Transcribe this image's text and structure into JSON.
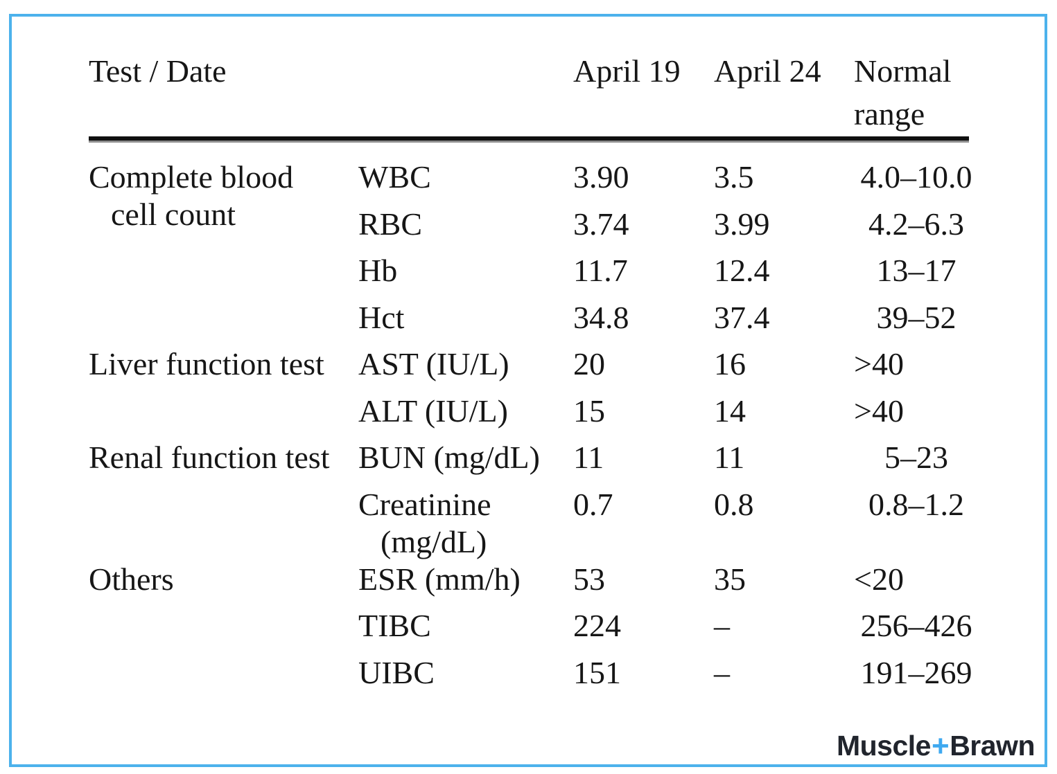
{
  "frame": {
    "border_color": "#4cb2ec"
  },
  "table": {
    "header": {
      "test_date": "Test / Date",
      "april19": "April 19",
      "april24": "April 24",
      "normal_range": "Normal range"
    },
    "rows": [
      {
        "group": [
          "Complete blood",
          "cell count"
        ],
        "test": [
          "WBC"
        ],
        "apr19": "3.90",
        "apr24": "3.5",
        "range": "4.0–10.0"
      },
      {
        "group": [],
        "test": [
          "RBC"
        ],
        "apr19": "3.74",
        "apr24": "3.99",
        "range": "4.2–6.3"
      },
      {
        "group": [],
        "test": [
          "Hb"
        ],
        "apr19": "11.7",
        "apr24": "12.4",
        "range": "13–17"
      },
      {
        "group": [],
        "test": [
          "Hct"
        ],
        "apr19": "34.8",
        "apr24": "37.4",
        "range": "39–52"
      },
      {
        "group": [
          "Liver function test"
        ],
        "test": [
          "AST (IU/L)"
        ],
        "apr19": "20",
        "apr24": "16",
        "range": ">40"
      },
      {
        "group": [],
        "test": [
          "ALT (IU/L)"
        ],
        "apr19": "15",
        "apr24": "14",
        "range": ">40"
      },
      {
        "group": [
          "Renal function test"
        ],
        "test": [
          "BUN (mg/dL)"
        ],
        "apr19": "11",
        "apr24": "11",
        "range": "5–23"
      },
      {
        "group": [],
        "test": [
          "Creatinine",
          "(mg/dL)"
        ],
        "apr19": "0.7",
        "apr24": "0.8",
        "range": "0.8–1.2"
      },
      {
        "group": [
          "Others"
        ],
        "test": [
          "ESR (mm/h)"
        ],
        "apr19": "53",
        "apr24": "35",
        "range": "<20"
      },
      {
        "group": [],
        "test": [
          "TIBC"
        ],
        "apr19": "224",
        "apr24": "–",
        "range": "256–426"
      },
      {
        "group": [],
        "test": [
          "UIBC"
        ],
        "apr19": "151",
        "apr24": "–",
        "range": "191–269"
      }
    ]
  },
  "logo": {
    "part1": "Muscle",
    "plus": "+",
    "part2": "Brawn",
    "dark_color": "#21252d",
    "blue_color": "#3fa9f0"
  }
}
